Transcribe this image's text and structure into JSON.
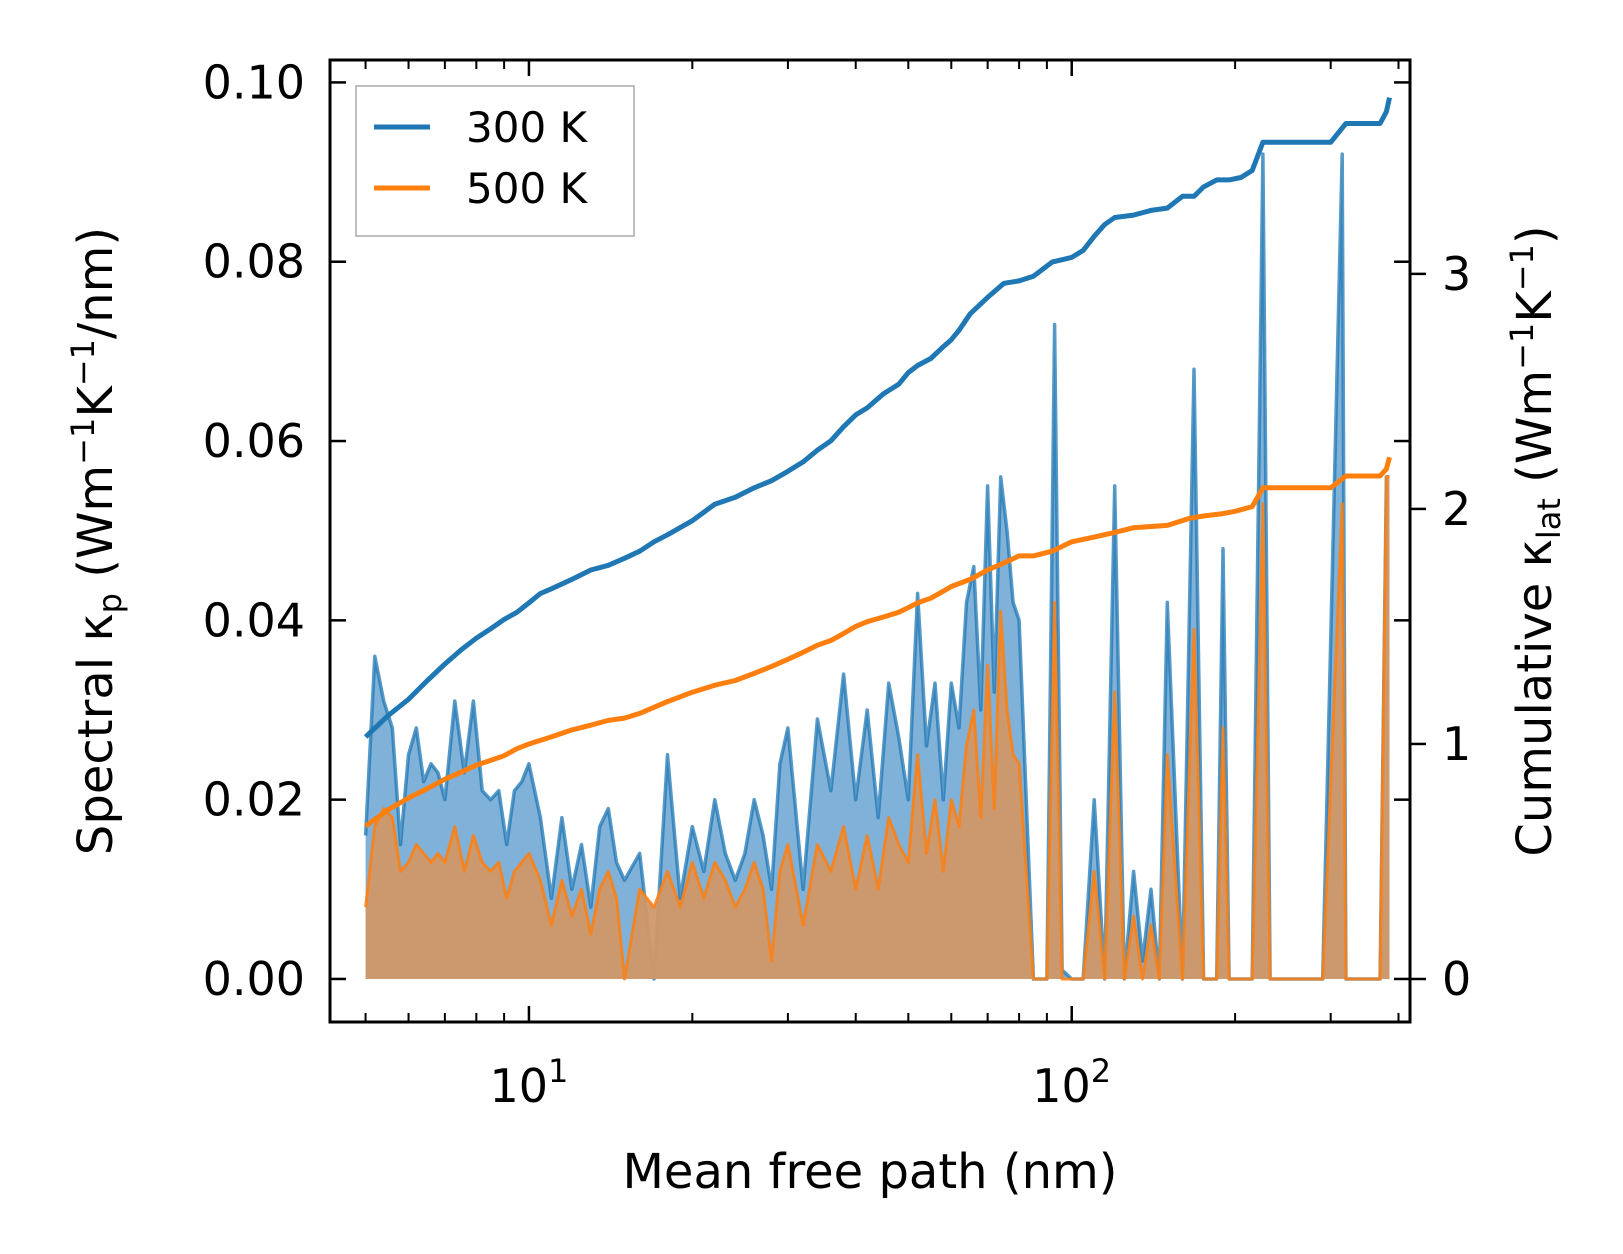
{
  "colors": {
    "series_300": "#1f77b4",
    "series_500": "#ff7f0e",
    "fill_300": "#4a90c8",
    "fill_500": "#d09868"
  },
  "chart_data": {
    "type": "line",
    "x_scale": "log",
    "xlim": [
      4.3,
      420
    ],
    "ylim_left": [
      -0.0048,
      0.1025
    ],
    "ylim_right": [
      -0.183,
      3.91
    ],
    "xlabel": "Mean free path (nm)",
    "ylabel_left": {
      "prefix": "Spectral κ",
      "sub": "p",
      "suffix": " (Wm",
      "exp1": "−1",
      "mid": "K",
      "exp2": "−1",
      "end": "/nm)"
    },
    "ylabel_right": {
      "prefix": "Cumulative κ",
      "sub": "lat",
      "suffix": " (Wm",
      "exp1": "−1",
      "mid": "K",
      "exp2": "−1",
      "end": ")"
    },
    "x_ticks": [
      {
        "value": 10,
        "base": "10",
        "exp": "1"
      },
      {
        "value": 100,
        "base": "10",
        "exp": "2"
      }
    ],
    "y_ticks_left": [
      {
        "value": 0.0,
        "label": "0.00"
      },
      {
        "value": 0.02,
        "label": "0.02"
      },
      {
        "value": 0.04,
        "label": "0.04"
      },
      {
        "value": 0.06,
        "label": "0.06"
      },
      {
        "value": 0.08,
        "label": "0.08"
      },
      {
        "value": 0.1,
        "label": "0.10"
      }
    ],
    "y_ticks_right": [
      {
        "value": 0,
        "label": "0"
      },
      {
        "value": 1,
        "label": "1"
      },
      {
        "value": 2,
        "label": "2"
      },
      {
        "value": 3,
        "label": "3"
      }
    ],
    "legend": {
      "placement": "top-left",
      "entries": [
        "300 K",
        "500 K"
      ]
    },
    "spectral": {
      "x": [
        5.0,
        5.2,
        5.4,
        5.6,
        5.8,
        6.0,
        6.2,
        6.4,
        6.6,
        6.8,
        7.0,
        7.3,
        7.6,
        7.9,
        8.2,
        8.5,
        8.8,
        9.1,
        9.4,
        9.7,
        10.0,
        10.5,
        11.0,
        11.5,
        12.0,
        12.5,
        13.0,
        13.5,
        14.0,
        14.5,
        15.0,
        16.0,
        17.0,
        18.0,
        19.0,
        20.0,
        21.0,
        22.0,
        23.0,
        24.0,
        25.0,
        26.0,
        27.0,
        28.0,
        29.0,
        30.0,
        32.0,
        34.0,
        36.0,
        38.0,
        40.0,
        42.0,
        44.0,
        46.0,
        48.0,
        50.0,
        52.0,
        54.0,
        56.0,
        58.0,
        60.0,
        62.0,
        64.0,
        66.0,
        68.0,
        70.0,
        72.0,
        74.0,
        76.0,
        78.0,
        80.0,
        85.0,
        90.0,
        93.0,
        96.0,
        100.0,
        105.0,
        110.0,
        115.0,
        120.0,
        125.0,
        130.0,
        135.0,
        140.0,
        145.0,
        150.0,
        160.0,
        168.0,
        175.0,
        185.0,
        190.0,
        195.0,
        205.0,
        215.0,
        225.0,
        232.0,
        240.0,
        260.0,
        290.0,
        315.0,
        320.0,
        330.0,
        350.0,
        370.0,
        380.0,
        385.0
      ],
      "k300": [
        0.016,
        0.036,
        0.031,
        0.028,
        0.015,
        0.025,
        0.028,
        0.022,
        0.024,
        0.023,
        0.02,
        0.031,
        0.023,
        0.031,
        0.021,
        0.02,
        0.021,
        0.015,
        0.021,
        0.022,
        0.024,
        0.018,
        0.009,
        0.018,
        0.01,
        0.015,
        0.008,
        0.017,
        0.019,
        0.013,
        0.011,
        0.014,
        0.0,
        0.025,
        0.009,
        0.017,
        0.012,
        0.02,
        0.014,
        0.011,
        0.014,
        0.02,
        0.016,
        0.01,
        0.024,
        0.028,
        0.01,
        0.029,
        0.021,
        0.034,
        0.02,
        0.03,
        0.018,
        0.033,
        0.027,
        0.02,
        0.043,
        0.026,
        0.033,
        0.02,
        0.033,
        0.028,
        0.042,
        0.046,
        0.03,
        0.055,
        0.032,
        0.056,
        0.05,
        0.042,
        0.04,
        0.0,
        0.0,
        0.073,
        0.001,
        0.0,
        0.0,
        0.02,
        0.0,
        0.055,
        0.0,
        0.012,
        0.002,
        0.01,
        0.0,
        0.042,
        0.0,
        0.068,
        0.0,
        0.0,
        0.048,
        0.0,
        0.0,
        0.0,
        0.092,
        0.0,
        0.0,
        0.0,
        0.0,
        0.092,
        0.0,
        0.0,
        0.0,
        0.0,
        0.056,
        0.056
      ],
      "k500": [
        0.008,
        0.017,
        0.019,
        0.018,
        0.012,
        0.013,
        0.015,
        0.014,
        0.013,
        0.014,
        0.013,
        0.017,
        0.012,
        0.016,
        0.013,
        0.012,
        0.013,
        0.009,
        0.012,
        0.013,
        0.014,
        0.011,
        0.006,
        0.011,
        0.007,
        0.01,
        0.005,
        0.01,
        0.012,
        0.009,
        0.0,
        0.01,
        0.008,
        0.012,
        0.008,
        0.013,
        0.009,
        0.013,
        0.011,
        0.008,
        0.01,
        0.013,
        0.01,
        0.002,
        0.012,
        0.015,
        0.006,
        0.015,
        0.012,
        0.017,
        0.01,
        0.016,
        0.01,
        0.018,
        0.015,
        0.013,
        0.025,
        0.014,
        0.02,
        0.012,
        0.02,
        0.017,
        0.026,
        0.03,
        0.018,
        0.035,
        0.019,
        0.041,
        0.03,
        0.025,
        0.024,
        0.0,
        0.0,
        0.042,
        0.0,
        0.0,
        0.0,
        0.012,
        0.0,
        0.032,
        0.0,
        0.007,
        0.0,
        0.006,
        0.0,
        0.025,
        0.0,
        0.039,
        0.0,
        0.0,
        0.028,
        0.0,
        0.0,
        0.0,
        0.053,
        0.0,
        0.0,
        0.0,
        0.0,
        0.053,
        0.0,
        0.0,
        0.0,
        0.0,
        0.056,
        0.056
      ]
    },
    "series": [
      {
        "name": "300 K",
        "x": [
          5.0,
          5.5,
          6.0,
          6.5,
          7.0,
          7.5,
          8.0,
          8.5,
          9.0,
          9.5,
          10.0,
          10.5,
          11.0,
          12.0,
          13.0,
          14.0,
          15.0,
          16.0,
          17.0,
          18.0,
          20.0,
          22.0,
          24.0,
          26.0,
          28.0,
          30.0,
          32.0,
          34.0,
          36.0,
          38.0,
          40.0,
          42.0,
          45.0,
          48.0,
          50.0,
          52.0,
          55.0,
          58.0,
          60.0,
          62.0,
          65.0,
          70.0,
          75.0,
          80.0,
          85.0,
          92.0,
          100.0,
          105.0,
          110.0,
          115.0,
          120.0,
          130.0,
          140.0,
          150.0,
          160.0,
          168.0,
          175.0,
          185.0,
          195.0,
          205.0,
          215.0,
          225.0,
          232.0,
          260.0,
          300.0,
          320.0,
          340.0,
          370.0,
          380.0,
          385.0
        ],
        "y": [
          1.03,
          1.12,
          1.19,
          1.27,
          1.34,
          1.4,
          1.45,
          1.49,
          1.53,
          1.56,
          1.6,
          1.64,
          1.66,
          1.7,
          1.74,
          1.76,
          1.79,
          1.82,
          1.86,
          1.89,
          1.95,
          2.02,
          2.05,
          2.09,
          2.12,
          2.16,
          2.2,
          2.25,
          2.29,
          2.35,
          2.4,
          2.43,
          2.49,
          2.53,
          2.58,
          2.61,
          2.64,
          2.69,
          2.72,
          2.76,
          2.83,
          2.9,
          2.96,
          2.97,
          2.99,
          3.05,
          3.07,
          3.1,
          3.16,
          3.21,
          3.24,
          3.25,
          3.27,
          3.28,
          3.33,
          3.33,
          3.37,
          3.4,
          3.4,
          3.41,
          3.44,
          3.56,
          3.56,
          3.56,
          3.56,
          3.64,
          3.64,
          3.64,
          3.69,
          3.75
        ]
      },
      {
        "name": "500 K",
        "x": [
          5.0,
          5.5,
          6.0,
          6.5,
          7.0,
          7.5,
          8.0,
          8.5,
          9.0,
          9.5,
          10.0,
          11.0,
          12.0,
          13.0,
          14.0,
          15.0,
          16.0,
          18.0,
          20.0,
          22.0,
          24.0,
          26.0,
          28.0,
          30.0,
          32.0,
          34.0,
          36.0,
          38.0,
          40.0,
          42.0,
          45.0,
          48.0,
          50.0,
          52.0,
          55.0,
          58.0,
          60.0,
          65.0,
          70.0,
          75.0,
          80.0,
          85.0,
          92.0,
          100.0,
          110.0,
          120.0,
          130.0,
          150.0,
          165.0,
          175.0,
          190.0,
          200.0,
          215.0,
          225.0,
          232.0,
          300.0,
          320.0,
          340.0,
          370.0,
          380.0,
          385.0
        ],
        "y": [
          0.65,
          0.72,
          0.77,
          0.81,
          0.85,
          0.88,
          0.91,
          0.93,
          0.95,
          0.98,
          1.0,
          1.03,
          1.06,
          1.08,
          1.1,
          1.11,
          1.13,
          1.18,
          1.22,
          1.25,
          1.27,
          1.3,
          1.33,
          1.36,
          1.39,
          1.42,
          1.44,
          1.47,
          1.5,
          1.52,
          1.54,
          1.56,
          1.58,
          1.6,
          1.62,
          1.65,
          1.67,
          1.7,
          1.74,
          1.77,
          1.8,
          1.8,
          1.82,
          1.86,
          1.88,
          1.9,
          1.92,
          1.93,
          1.96,
          1.97,
          1.98,
          1.99,
          2.01,
          2.09,
          2.09,
          2.09,
          2.14,
          2.14,
          2.14,
          2.17,
          2.22
        ]
      }
    ]
  }
}
